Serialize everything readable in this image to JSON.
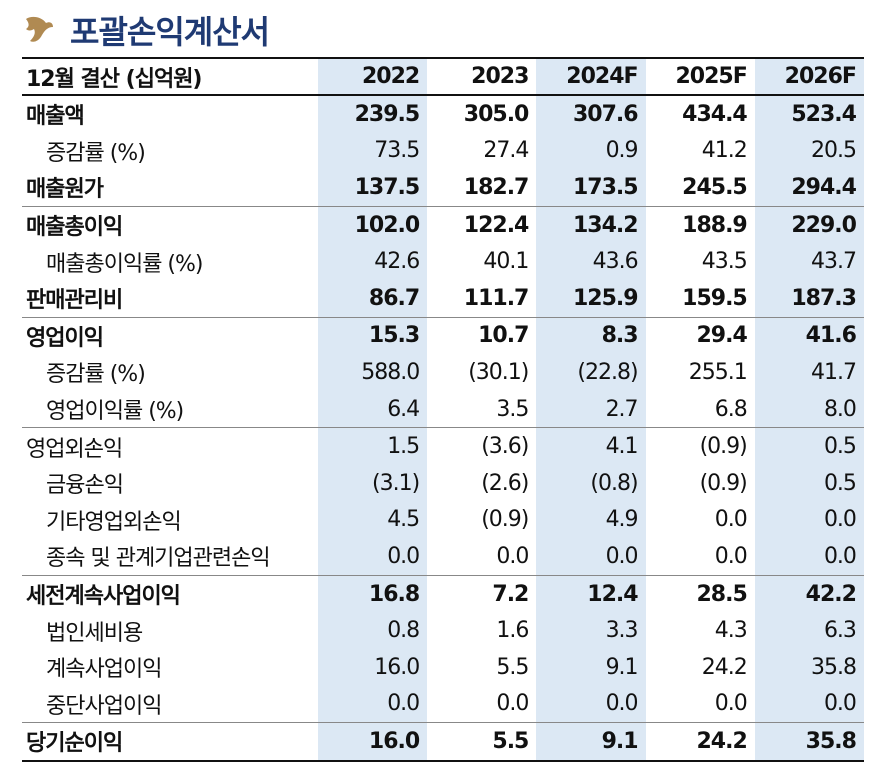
{
  "title": "포괄손익계산서",
  "table": {
    "header": {
      "label": "12월 결산 (십억원)",
      "years": [
        "2022",
        "2023",
        "2024F",
        "2025F",
        "2026F"
      ]
    },
    "rows": [
      {
        "label": "매출액",
        "values": [
          "239.5",
          "305.0",
          "307.6",
          "434.4",
          "523.4"
        ]
      },
      {
        "label": "증감률 (%)",
        "values": [
          "73.5",
          "27.4",
          "0.9",
          "41.2",
          "20.5"
        ]
      },
      {
        "label": "매출원가",
        "values": [
          "137.5",
          "182.7",
          "173.5",
          "245.5",
          "294.4"
        ]
      },
      {
        "label": "매출총이익",
        "values": [
          "102.0",
          "122.4",
          "134.2",
          "188.9",
          "229.0"
        ]
      },
      {
        "label": "매출총이익률 (%)",
        "values": [
          "42.6",
          "40.1",
          "43.6",
          "43.5",
          "43.7"
        ]
      },
      {
        "label": "판매관리비",
        "values": [
          "86.7",
          "111.7",
          "125.9",
          "159.5",
          "187.3"
        ]
      },
      {
        "label": "영업이익",
        "values": [
          "15.3",
          "10.7",
          "8.3",
          "29.4",
          "41.6"
        ]
      },
      {
        "label": "증감률 (%)",
        "values": [
          "588.0",
          "(30.1)",
          "(22.8)",
          "255.1",
          "41.7"
        ]
      },
      {
        "label": "영업이익률 (%)",
        "values": [
          "6.4",
          "3.5",
          "2.7",
          "6.8",
          "8.0"
        ]
      },
      {
        "label": "영업외손익",
        "values": [
          "1.5",
          "(3.6)",
          "4.1",
          "(0.9)",
          "0.5"
        ]
      },
      {
        "label": "금융손익",
        "values": [
          "(3.1)",
          "(2.6)",
          "(0.8)",
          "(0.9)",
          "0.5"
        ]
      },
      {
        "label": "기타영업외손익",
        "values": [
          "4.5",
          "(0.9)",
          "4.9",
          "0.0",
          "0.0"
        ]
      },
      {
        "label": "종속 및 관계기업관련손익",
        "values": [
          "0.0",
          "0.0",
          "0.0",
          "0.0",
          "0.0"
        ]
      },
      {
        "label": "세전계속사업이익",
        "values": [
          "16.8",
          "7.2",
          "12.4",
          "28.5",
          "42.2"
        ]
      },
      {
        "label": "법인세비용",
        "values": [
          "0.8",
          "1.6",
          "3.3",
          "4.3",
          "6.3"
        ]
      },
      {
        "label": "계속사업이익",
        "values": [
          "16.0",
          "5.5",
          "9.1",
          "24.2",
          "35.8"
        ]
      },
      {
        "label": "중단사업이익",
        "values": [
          "0.0",
          "0.0",
          "0.0",
          "0.0",
          "0.0"
        ]
      },
      {
        "label": "당기순이익",
        "values": [
          "16.0",
          "5.5",
          "9.1",
          "24.2",
          "35.8"
        ]
      }
    ]
  },
  "colors": {
    "title": "#1f3a73",
    "highlight_column": "#dce8f4",
    "logo": "#b08a52"
  },
  "icons": {
    "logo": "brand-logo-icon"
  }
}
